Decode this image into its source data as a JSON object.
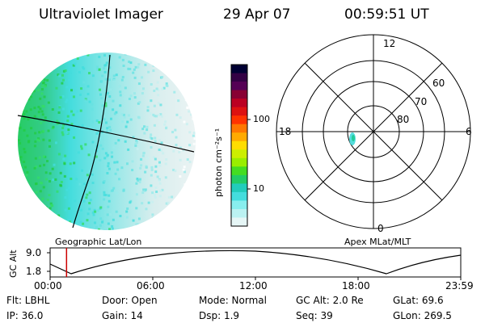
{
  "header": {
    "instrument": "Ultraviolet Imager",
    "date": "29 Apr 07",
    "time": "00:59:51 UT"
  },
  "colorbar": {
    "unit_label": "photon cm⁻²s⁻¹",
    "ticks": [
      "100",
      "10"
    ],
    "colors": [
      "#000033",
      "#330044",
      "#550055",
      "#880033",
      "#bb0022",
      "#dd1111",
      "#ff3300",
      "#ff7700",
      "#ffaa00",
      "#ffdd00",
      "#ccee00",
      "#99ee00",
      "#44dd22",
      "#22cc66",
      "#22ccbb",
      "#44dddd",
      "#88eeee",
      "#bbf2f2",
      "#e6f6f6"
    ]
  },
  "geographic_panel": {
    "label": "Geographic Lat/Lon"
  },
  "polar_panel": {
    "label": "Apex MLat/MLT",
    "mlt_labels": {
      "top": "12",
      "left": "18",
      "right": "6",
      "bottom": "0"
    },
    "lat_labels": [
      "60",
      "70",
      "80"
    ]
  },
  "altitude_plot": {
    "ylabel": "GC Alt",
    "yticks": [
      "9.0",
      "1.8"
    ],
    "xticks": [
      "00:00",
      "06:00",
      "12:00",
      "18:00",
      "23:59"
    ],
    "current_time_fraction": 0.04,
    "marker_color": "#cc0000"
  },
  "footer": {
    "flt": "Flt: LBHL",
    "ip": "IP: 36.0",
    "door": "Door: Open",
    "gain": "Gain: 14",
    "mode": "Mode: Normal",
    "dsp": "Dsp:    1.9",
    "gcalt": "GC Alt: 2.0 Re",
    "seq": "Seq: 39",
    "glat": "GLat:  69.6",
    "glon": "GLon: 269.5"
  }
}
